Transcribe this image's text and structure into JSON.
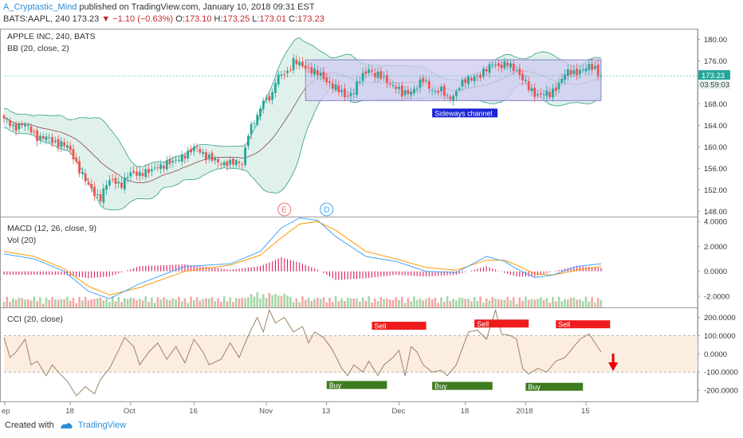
{
  "header": {
    "author": "A_Cryptastic_Mind",
    "published_text": "published on TradingView.com, January 10, 2018 09:31 EST",
    "symbol": "BATS:AAPL, 240",
    "last": "173.23",
    "change": "▼ −1.10 (−0.63%)",
    "o_label": "O:",
    "o_val": "173.10",
    "h_label": "H:",
    "h_val": "173.25",
    "l_label": "L:",
    "l_val": "173.01",
    "c_label": "C:",
    "c_val": "173.23"
  },
  "footer": {
    "created_with": "Created with",
    "brand": "TradingView"
  },
  "colors": {
    "up": "#26a69a",
    "down": "#ef5350",
    "band_fill": "#d6ece6",
    "channel_fill": "#cfcdf0",
    "macd": "#42a5f5",
    "signal": "#ff9800",
    "hist": "#d81b60",
    "cci": "#9c8466",
    "cci_band": "#fbeee0"
  },
  "chart_data": [
    {
      "type": "candlestick",
      "title": "APPLE INC, 240, BATS",
      "subtitle": "BB (20, close, 2)",
      "ylim": [
        147,
        182
      ],
      "yticks": [
        "148.00",
        "152.00",
        "156.00",
        "160.00",
        "164.00",
        "168.00",
        "172.00",
        "176.00",
        "180.00"
      ],
      "last_price_label": "173.23",
      "countdown_label": "03:59:03",
      "xticks": [
        "ep",
        "18",
        "Oct",
        "16",
        "Nov",
        "13",
        "Dec",
        "18",
        "2018",
        "15"
      ],
      "close_path": [
        [
          0,
          165.0
        ],
        [
          3,
          163.8
        ],
        [
          6,
          164.2
        ],
        [
          9,
          163.0
        ],
        [
          11,
          162.0
        ],
        [
          14,
          161.5
        ],
        [
          16,
          161.0
        ],
        [
          19,
          160.8
        ],
        [
          21,
          159.8
        ],
        [
          23,
          158.0
        ],
        [
          26,
          155.0
        ],
        [
          28,
          152.5
        ],
        [
          30,
          151.2
        ],
        [
          32,
          150.8
        ],
        [
          34,
          153.0
        ],
        [
          36,
          153.5
        ],
        [
          39,
          153.3
        ],
        [
          41,
          154.5
        ],
        [
          44,
          155.0
        ],
        [
          46,
          155.5
        ],
        [
          49,
          155.2
        ],
        [
          51,
          156.5
        ],
        [
          54,
          157.0
        ],
        [
          56,
          156.8
        ],
        [
          59,
          158.5
        ],
        [
          61,
          158.8
        ],
        [
          64,
          159.7
        ],
        [
          66,
          159.0
        ],
        [
          69,
          157.5
        ],
        [
          71,
          157.0
        ],
        [
          74,
          157.2
        ],
        [
          76,
          156.8
        ],
        [
          79,
          157.0
        ],
        [
          81,
          162.8
        ],
        [
          84,
          165.3
        ],
        [
          86,
          169.0
        ],
        [
          89,
          169.5
        ],
        [
          90,
          172.0
        ],
        [
          92,
          173.5
        ],
        [
          94,
          174.2
        ],
        [
          96,
          175.8
        ],
        [
          98,
          175.2
        ],
        [
          101,
          174.8
        ],
        [
          103,
          173.8
        ],
        [
          106,
          172.8
        ],
        [
          108,
          172.0
        ],
        [
          111,
          170.3
        ],
        [
          113,
          169.5
        ],
        [
          116,
          170.5
        ],
        [
          118,
          172.2
        ],
        [
          121,
          174.8
        ],
        [
          123,
          173.5
        ],
        [
          126,
          172.5
        ],
        [
          128,
          172.0
        ],
        [
          130,
          171.2
        ],
        [
          132,
          169.5
        ],
        [
          134,
          170.3
        ],
        [
          137,
          171.2
        ],
        [
          139,
          172.2
        ],
        [
          141,
          171.3
        ],
        [
          143,
          170.5
        ],
        [
          145,
          170.3
        ],
        [
          147,
          169.0
        ],
        [
          149,
          169.8
        ],
        [
          151,
          171.2
        ],
        [
          154,
          172.5
        ],
        [
          156,
          173.4
        ],
        [
          158,
          173.1
        ],
        [
          161,
          174.8
        ],
        [
          162,
          175.9
        ],
        [
          165,
          174.8
        ],
        [
          167,
          175.3
        ],
        [
          170,
          174.5
        ],
        [
          172,
          172.5
        ],
        [
          174,
          170.8
        ],
        [
          176,
          170.0
        ],
        [
          179,
          169.8
        ],
        [
          181,
          169.5
        ],
        [
          184,
          172.0
        ],
        [
          186,
          173.5
        ],
        [
          189,
          173.8
        ],
        [
          191,
          174.4
        ],
        [
          194,
          174.6
        ],
        [
          196,
          174.6
        ],
        [
          198,
          173.3
        ]
      ],
      "channel": {
        "label": "Sideways channel",
        "start": 100,
        "end": 198,
        "high": 176.2,
        "low": 168.6
      },
      "markers": [
        {
          "label": "E",
          "x": 93
        },
        {
          "label": "D",
          "x": 107
        }
      ]
    },
    {
      "type": "line",
      "title": "MACD (12, 26, close, 9)",
      "subtitle": "Vol (20)",
      "ylim": [
        -2.9,
        4.4
      ],
      "yticks": [
        "-2.0000",
        "0.0000",
        "2.0000",
        "4.0000"
      ],
      "series": [
        {
          "name": "MACD",
          "values": [
            [
              0,
              1.4
            ],
            [
              10,
              1.0
            ],
            [
              20,
              0.0
            ],
            [
              28,
              -1.6
            ],
            [
              35,
              -2.2
            ],
            [
              45,
              -1.0
            ],
            [
              60,
              0.4
            ],
            [
              75,
              0.6
            ],
            [
              85,
              1.6
            ],
            [
              92,
              3.5
            ],
            [
              98,
              4.3
            ],
            [
              104,
              4.1
            ],
            [
              110,
              2.8
            ],
            [
              120,
              1.2
            ],
            [
              130,
              0.8
            ],
            [
              140,
              0.0
            ],
            [
              150,
              -0.1
            ],
            [
              160,
              1.2
            ],
            [
              166,
              0.8
            ],
            [
              170,
              0.2
            ],
            [
              176,
              -0.5
            ],
            [
              182,
              -0.3
            ],
            [
              190,
              0.4
            ],
            [
              198,
              0.6
            ]
          ]
        },
        {
          "name": "Signal",
          "values": [
            [
              0,
              1.6
            ],
            [
              10,
              1.2
            ],
            [
              20,
              0.2
            ],
            [
              28,
              -1.2
            ],
            [
              35,
              -1.9
            ],
            [
              45,
              -1.3
            ],
            [
              60,
              0.0
            ],
            [
              75,
              0.5
            ],
            [
              85,
              1.3
            ],
            [
              92,
              2.7
            ],
            [
              98,
              3.8
            ],
            [
              104,
              4.0
            ],
            [
              110,
              3.3
            ],
            [
              120,
              1.6
            ],
            [
              130,
              1.0
            ],
            [
              140,
              0.3
            ],
            [
              150,
              0.1
            ],
            [
              160,
              0.9
            ],
            [
              166,
              0.9
            ],
            [
              170,
              0.5
            ],
            [
              176,
              -0.2
            ],
            [
              182,
              -0.3
            ],
            [
              190,
              0.1
            ],
            [
              198,
              0.4
            ]
          ]
        }
      ]
    },
    {
      "type": "line",
      "title": "CCI (20, close)",
      "ylim": [
        -265,
        255
      ],
      "yticks": [
        "-200.0000",
        "-100.0000",
        "0.0000",
        "100.0000",
        "200.0000"
      ],
      "annotations": [
        {
          "label": "Sell",
          "x": 122,
          "end": 140,
          "y": 150,
          "color": "#ee1c1c"
        },
        {
          "label": "Sell",
          "x": 156,
          "end": 174,
          "y": 162,
          "color": "#ee1c1c"
        },
        {
          "label": "Sell",
          "x": 183,
          "end": 201,
          "y": 158,
          "color": "#ee1c1c"
        },
        {
          "label": "Buy",
          "x": 107,
          "end": 127,
          "y": -175,
          "color": "#3e7b20"
        },
        {
          "label": "Buy",
          "x": 142,
          "end": 162,
          "y": -180,
          "color": "#3e7b20"
        },
        {
          "label": "Buy",
          "x": 173,
          "end": 192,
          "y": -185,
          "color": "#3e7b20"
        }
      ],
      "series": [
        {
          "name": "CCI",
          "values": [
            [
              0,
              90
            ],
            [
              2,
              -20
            ],
            [
              4,
              10
            ],
            [
              7,
              80
            ],
            [
              9,
              -60
            ],
            [
              11,
              -40
            ],
            [
              14,
              -120
            ],
            [
              16,
              -60
            ],
            [
              18,
              -100
            ],
            [
              21,
              -150
            ],
            [
              24,
              -230
            ],
            [
              27,
              -180
            ],
            [
              30,
              -220
            ],
            [
              32,
              -140
            ],
            [
              35,
              -80
            ],
            [
              38,
              20
            ],
            [
              40,
              90
            ],
            [
              43,
              40
            ],
            [
              45,
              -60
            ],
            [
              48,
              10
            ],
            [
              51,
              60
            ],
            [
              54,
              -30
            ],
            [
              57,
              40
            ],
            [
              60,
              -50
            ],
            [
              63,
              80
            ],
            [
              66,
              10
            ],
            [
              68,
              -60
            ],
            [
              72,
              -30
            ],
            [
              75,
              60
            ],
            [
              78,
              -20
            ],
            [
              81,
              100
            ],
            [
              84,
              200
            ],
            [
              86,
              120
            ],
            [
              88,
              240
            ],
            [
              90,
              170
            ],
            [
              93,
              200
            ],
            [
              96,
              120
            ],
            [
              99,
              150
            ],
            [
              101,
              60
            ],
            [
              103,
              120
            ],
            [
              106,
              90
            ],
            [
              109,
              20
            ],
            [
              112,
              -80
            ],
            [
              114,
              -120
            ],
            [
              116,
              -60
            ],
            [
              119,
              -100
            ],
            [
              121,
              -40
            ],
            [
              124,
              -120
            ],
            [
              126,
              -60
            ],
            [
              129,
              -20
            ],
            [
              131,
              20
            ],
            [
              133,
              -120
            ],
            [
              135,
              40
            ],
            [
              137,
              10
            ],
            [
              139,
              -60
            ],
            [
              142,
              -100
            ],
            [
              145,
              -90
            ],
            [
              147,
              -120
            ],
            [
              150,
              -60
            ],
            [
              152,
              30
            ],
            [
              154,
              120
            ],
            [
              157,
              130
            ],
            [
              160,
              80
            ],
            [
              163,
              240
            ],
            [
              165,
              110
            ],
            [
              168,
              100
            ],
            [
              170,
              80
            ],
            [
              172,
              -80
            ],
            [
              174,
              -110
            ],
            [
              177,
              -80
            ],
            [
              180,
              -100
            ],
            [
              183,
              -40
            ],
            [
              186,
              -20
            ],
            [
              188,
              20
            ],
            [
              191,
              80
            ],
            [
              194,
              110
            ],
            [
              196,
              60
            ],
            [
              198,
              10
            ]
          ]
        }
      ]
    }
  ]
}
